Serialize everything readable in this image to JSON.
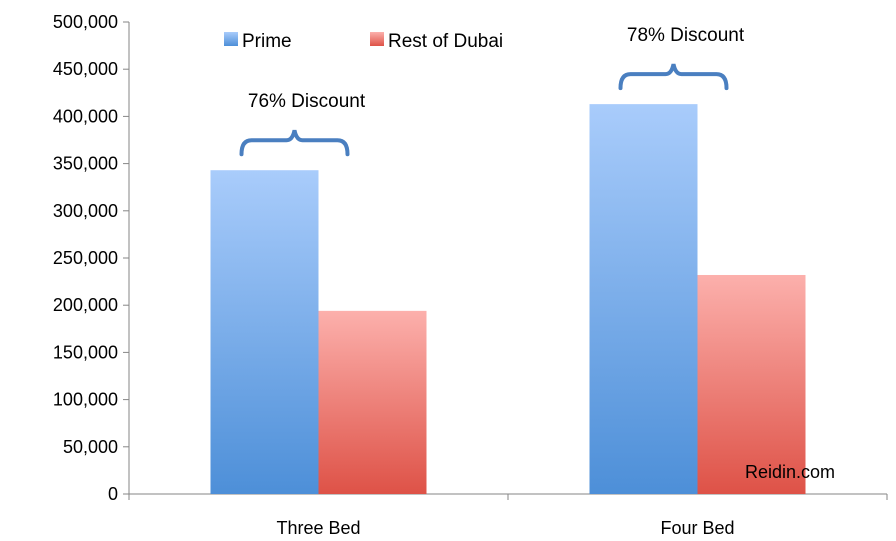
{
  "chart_data": {
    "type": "bar",
    "categories": [
      "Three Bed",
      "Four Bed"
    ],
    "series": [
      {
        "name": "Prime",
        "values": [
          343000,
          413000
        ],
        "color": "#5b9be0"
      },
      {
        "name": "Rest of Dubai",
        "values": [
          194000,
          232000
        ],
        "color": "#e86a60"
      }
    ],
    "ylim": [
      0,
      500000
    ],
    "yticks": [
      0,
      50000,
      100000,
      150000,
      200000,
      250000,
      300000,
      350000,
      400000,
      450000,
      500000
    ],
    "ytick_labels": [
      "0",
      "50,000",
      "100,000",
      "150,000",
      "200,000",
      "250,000",
      "300,000",
      "350,000",
      "400,000",
      "450,000",
      "500,000"
    ],
    "grid": false,
    "legend_position": "top-center",
    "annotations": [
      {
        "category": "Three Bed",
        "text": "76% Discount"
      },
      {
        "category": "Four Bed",
        "text": "78% Discount"
      }
    ],
    "source_text": "Reidin.com",
    "bracket_color": "#4a7fc0"
  }
}
